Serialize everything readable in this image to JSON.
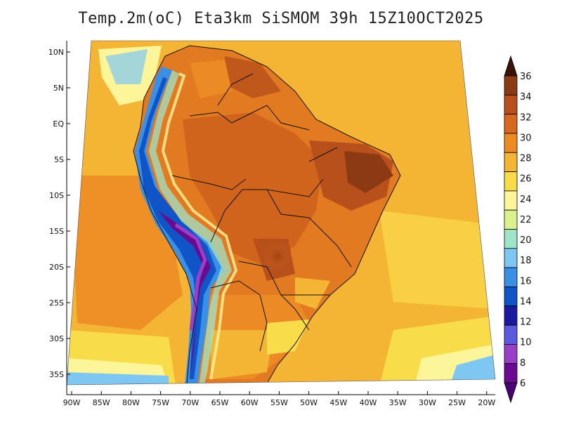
{
  "title": "Temp.2m(oC) Eta3km SiSMOM 39h 15Z10OCT2025",
  "lat_ticks": [
    "10N",
    "5N",
    "EQ",
    "5S",
    "10S",
    "15S",
    "20S",
    "25S",
    "30S",
    "35S"
  ],
  "lon_ticks": [
    "90W",
    "85W",
    "80W",
    "75W",
    "70W",
    "65W",
    "60W",
    "55W",
    "50W",
    "45W",
    "40W",
    "35W",
    "30W",
    "25W",
    "20W"
  ],
  "colorbar": {
    "labels": [
      "36",
      "34",
      "32",
      "30",
      "28",
      "26",
      "24",
      "22",
      "20",
      "18",
      "16",
      "14",
      "12",
      "10",
      "8",
      "6"
    ],
    "colors_top_to_bottom": [
      "#5a1e0a",
      "#8b3a14",
      "#b8501c",
      "#d8681f",
      "#ec8a24",
      "#f5b534",
      "#f8dc4a",
      "#fdf59a",
      "#d9f28e",
      "#9fe3c8",
      "#7dc7f2",
      "#3a8fe6",
      "#1055c8",
      "#1a1aa0",
      "#5a5ae0",
      "#9a40c8",
      "#6a0a90"
    ],
    "end_colors": {
      "top": "#3a1206",
      "bottom": "#4a0070"
    }
  }
}
